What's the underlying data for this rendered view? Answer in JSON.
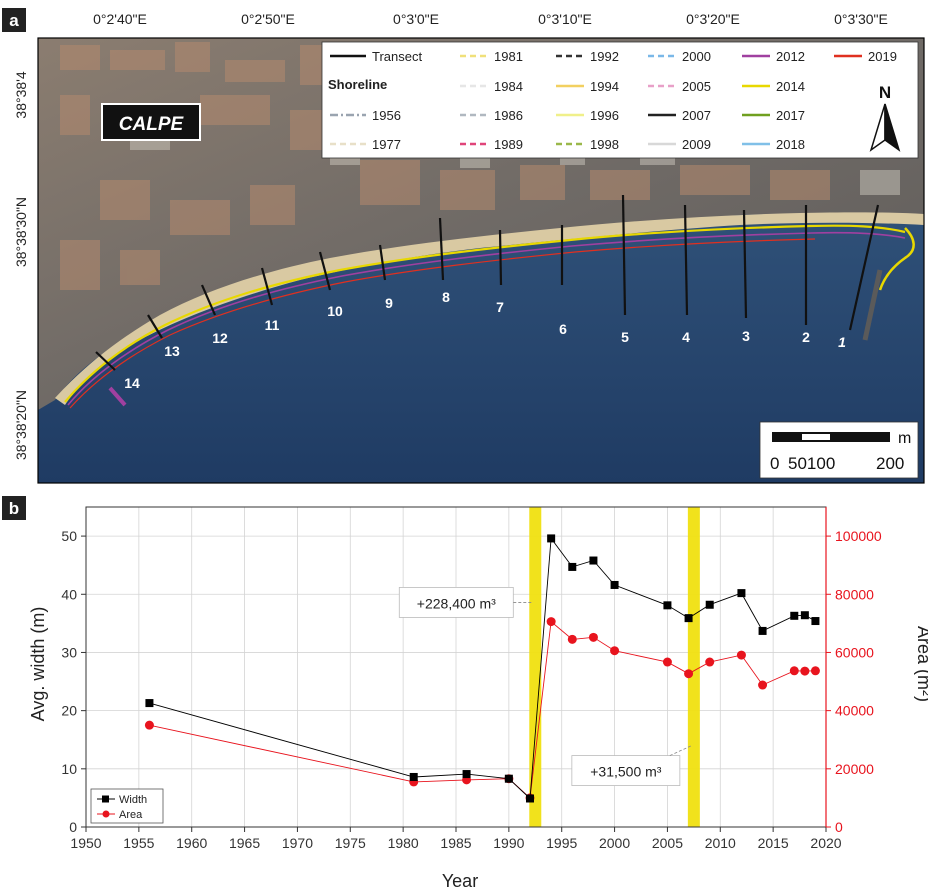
{
  "map": {
    "panel_label": "a",
    "town_label": "CALPE",
    "lon_ticks": [
      "0°2'40\"E",
      "0°2'50\"E",
      "0°3'0\"E",
      "0°3'10\"E",
      "0°3'20\"E",
      "0°3'30\"E"
    ],
    "lat_ticks": [
      "38°38'4",
      "38°38'30\"N",
      "38°38'20\"N"
    ],
    "north_label": "N",
    "scale_labels": [
      "0",
      "50100",
      "200"
    ],
    "scale_unit": "m",
    "transect_numbers": [
      "1",
      "2",
      "3",
      "4",
      "5",
      "6",
      "7",
      "8",
      "9",
      "10",
      "11",
      "12",
      "13",
      "14"
    ],
    "legend": {
      "transect_label": "Transect",
      "shoreline_heading": "Shoreline",
      "years": [
        {
          "label": "1956",
          "color": "#9aa4b0",
          "style": "dashdot"
        },
        {
          "label": "1977",
          "color": "#e8e0c8",
          "style": "dash"
        },
        {
          "label": "1981",
          "color": "#f0e07a",
          "style": "dash"
        },
        {
          "label": "1984",
          "color": "#e6e6e6",
          "style": "dash"
        },
        {
          "label": "1986",
          "color": "#b0b8c0",
          "style": "dash"
        },
        {
          "label": "1989",
          "color": "#e0457a",
          "style": "dash"
        },
        {
          "label": "1992",
          "color": "#333333",
          "style": "dash"
        },
        {
          "label": "1994",
          "color": "#f2d060",
          "style": "solid"
        },
        {
          "label": "1996",
          "color": "#f0f08a",
          "style": "solid"
        },
        {
          "label": "1998",
          "color": "#9ab84a",
          "style": "dash"
        },
        {
          "label": "2000",
          "color": "#7ab8e8",
          "style": "dash"
        },
        {
          "label": "2005",
          "color": "#e8a0c8",
          "style": "dash"
        },
        {
          "label": "2007",
          "color": "#222222",
          "style": "solid"
        },
        {
          "label": "2009",
          "color": "#d8d8d8",
          "style": "solid"
        },
        {
          "label": "2012",
          "color": "#a040a0",
          "style": "solid"
        },
        {
          "label": "2014",
          "color": "#e8d800",
          "style": "solid"
        },
        {
          "label": "2017",
          "color": "#70a020",
          "style": "solid"
        },
        {
          "label": "2018",
          "color": "#80c0e8",
          "style": "solid"
        },
        {
          "label": "2019",
          "color": "#e03020",
          "style": "solid"
        }
      ]
    }
  },
  "chart_data": {
    "type": "line",
    "panel_label": "b",
    "xlabel": "Year",
    "ylabel_left": "Avg. width (m)",
    "ylabel_right": "Area (m²)",
    "xlim": [
      1950,
      2020
    ],
    "ylim_left": [
      0,
      55
    ],
    "ylim_right": [
      0,
      110000
    ],
    "x_ticks": [
      1950,
      1955,
      1960,
      1965,
      1970,
      1975,
      1980,
      1985,
      1990,
      1995,
      2000,
      2005,
      2010,
      2015,
      2020
    ],
    "y_ticks_left": [
      0,
      10,
      20,
      30,
      40,
      50
    ],
    "y_ticks_right": [
      0,
      20000,
      40000,
      60000,
      80000,
      100000
    ],
    "grid": true,
    "legend_position": "bottom-left",
    "series": [
      {
        "name": "Width",
        "axis": "left",
        "color": "#000000",
        "marker": "square",
        "x": [
          1956,
          1981,
          1986,
          1990,
          1992,
          1994,
          1996,
          1998,
          2000,
          2005,
          2007,
          2009,
          2012,
          2014,
          2017,
          2018,
          2019
        ],
        "y": [
          21.3,
          8.6,
          9.1,
          8.3,
          4.9,
          49.6,
          44.7,
          45.8,
          41.6,
          38.1,
          35.9,
          38.2,
          40.2,
          33.7,
          36.3,
          36.4,
          35.4
        ]
      },
      {
        "name": "Area",
        "axis": "right",
        "color": "#e8141e",
        "marker": "circle",
        "x": [
          1956,
          1981,
          1986,
          1990,
          1992,
          1994,
          1996,
          1998,
          2000,
          2005,
          2007,
          2009,
          2012,
          2014,
          2017,
          2018,
          2019
        ],
        "y": [
          35000,
          15500,
          16200,
          16600,
          10000,
          70600,
          64500,
          65200,
          60600,
          56700,
          52700,
          56700,
          59100,
          48800,
          53700,
          53600,
          53700
        ]
      }
    ],
    "highlights": [
      {
        "x": 1992.5,
        "label": "+228,400 m³",
        "color": "#f0e010"
      },
      {
        "x": 2007.5,
        "label": "+31,500 m³",
        "color": "#f0e010"
      }
    ]
  }
}
